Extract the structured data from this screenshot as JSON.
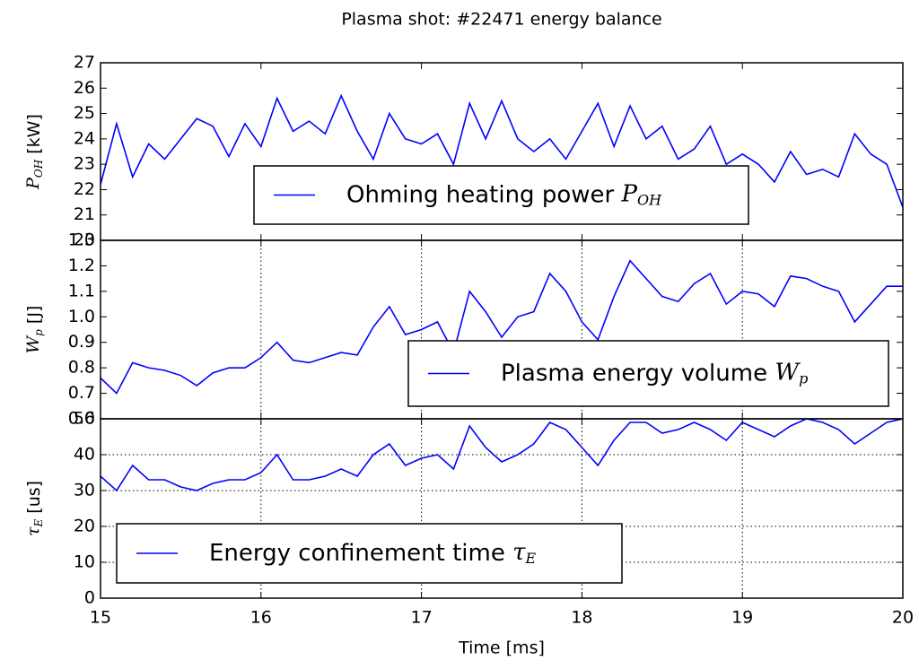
{
  "chart_data": [
    {
      "type": "line",
      "title": "Plasma shot: #22471 energy balance",
      "ylabel": {
        "symbol": "P",
        "sub": "OH",
        "unit": "[kW]"
      },
      "xlim": [
        15,
        20
      ],
      "ylim": [
        20,
        27
      ],
      "yticks": [
        20,
        21,
        22,
        23,
        24,
        25,
        26,
        27
      ],
      "grid": false,
      "legend": "lower center",
      "x": [
        15.0,
        15.1,
        15.2,
        15.3,
        15.4,
        15.5,
        15.6,
        15.7,
        15.8,
        15.9,
        16.0,
        16.1,
        16.2,
        16.3,
        16.4,
        16.5,
        16.6,
        16.7,
        16.8,
        16.9,
        17.0,
        17.1,
        17.2,
        17.3,
        17.4,
        17.5,
        17.6,
        17.7,
        17.8,
        17.9,
        18.0,
        18.1,
        18.2,
        18.3,
        18.4,
        18.5,
        18.6,
        18.7,
        18.8,
        18.9,
        19.0,
        19.1,
        19.2,
        19.3,
        19.4,
        19.5,
        19.6,
        19.7,
        19.8,
        19.9,
        20.0
      ],
      "series": [
        {
          "name": "Ohming heating power",
          "symbol": "P",
          "sub": "OH",
          "color": "#0000ff",
          "values": [
            22.2,
            24.6,
            22.5,
            23.8,
            23.2,
            24.0,
            24.8,
            24.5,
            23.3,
            24.6,
            23.7,
            25.6,
            24.3,
            24.7,
            24.2,
            25.7,
            24.3,
            23.2,
            25.0,
            24.0,
            23.8,
            24.2,
            23.0,
            25.4,
            24.0,
            25.5,
            24.0,
            23.5,
            24.0,
            23.2,
            24.3,
            25.4,
            23.7,
            25.3,
            24.0,
            24.5,
            23.2,
            23.6,
            24.5,
            23.0,
            23.4,
            23.0,
            22.3,
            23.5,
            22.6,
            22.8,
            22.5,
            24.2,
            23.4,
            23.0,
            21.3
          ]
        }
      ]
    },
    {
      "type": "line",
      "ylabel": {
        "symbol": "W",
        "sub": "p",
        "unit": "[J]"
      },
      "xlim": [
        15,
        20
      ],
      "ylim": [
        0.6,
        1.3
      ],
      "yticks": [
        0.6,
        0.7,
        0.8,
        0.9,
        {
          "value": 1,
          "label": "1.0"
        },
        1.1,
        1.2,
        1.3
      ],
      "grid": false,
      "legend": "lower right",
      "x": [
        15.0,
        15.1,
        15.2,
        15.3,
        15.4,
        15.5,
        15.6,
        15.7,
        15.8,
        15.9,
        16.0,
        16.1,
        16.2,
        16.3,
        16.4,
        16.5,
        16.6,
        16.7,
        16.8,
        16.9,
        17.0,
        17.1,
        17.2,
        17.3,
        17.4,
        17.5,
        17.6,
        17.7,
        17.8,
        17.9,
        18.0,
        18.1,
        18.2,
        18.3,
        18.4,
        18.5,
        18.6,
        18.7,
        18.8,
        18.9,
        19.0,
        19.1,
        19.2,
        19.3,
        19.4,
        19.5,
        19.6,
        19.7,
        19.8,
        19.9,
        20.0
      ],
      "series": [
        {
          "name": "Plasma energy volume",
          "symbol": "W",
          "sub": "p",
          "color": "#0000ff",
          "values": [
            0.76,
            0.7,
            0.82,
            0.8,
            0.79,
            0.77,
            0.73,
            0.78,
            0.8,
            0.8,
            0.84,
            0.9,
            0.83,
            0.82,
            0.84,
            0.86,
            0.85,
            0.96,
            1.04,
            0.93,
            0.95,
            0.98,
            0.86,
            1.1,
            1.02,
            0.92,
            1.0,
            1.02,
            1.17,
            1.1,
            0.98,
            0.91,
            1.08,
            1.22,
            1.15,
            1.08,
            1.06,
            1.13,
            1.17,
            1.05,
            1.1,
            1.09,
            1.04,
            1.16,
            1.15,
            1.12,
            1.1,
            0.98,
            1.05,
            1.12,
            1.12
          ]
        }
      ]
    },
    {
      "type": "line",
      "xlabel": "Time [ms]",
      "ylabel": {
        "symbol": "τ",
        "sub": "E",
        "unit": "[us]"
      },
      "xlim": [
        15,
        20
      ],
      "xticks": [
        15,
        16,
        17,
        18,
        19,
        20
      ],
      "ylim": [
        0,
        50
      ],
      "yticks": [
        0,
        10,
        20,
        30,
        40,
        50
      ],
      "grid": true,
      "legend": "lower left",
      "x": [
        15.0,
        15.1,
        15.2,
        15.3,
        15.4,
        15.5,
        15.6,
        15.7,
        15.8,
        15.9,
        16.0,
        16.1,
        16.2,
        16.3,
        16.4,
        16.5,
        16.6,
        16.7,
        16.8,
        16.9,
        17.0,
        17.1,
        17.2,
        17.3,
        17.4,
        17.5,
        17.6,
        17.7,
        17.8,
        17.9,
        18.0,
        18.1,
        18.2,
        18.3,
        18.4,
        18.5,
        18.6,
        18.7,
        18.8,
        18.9,
        19.0,
        19.1,
        19.2,
        19.3,
        19.4,
        19.5,
        19.6,
        19.7,
        19.8,
        19.9,
        20.0
      ],
      "series": [
        {
          "name": "Energy confinement time",
          "symbol": "τ",
          "sub": "E",
          "color": "#0000ff",
          "values": [
            34,
            30,
            37,
            33,
            33,
            31,
            30,
            32,
            33,
            33,
            35,
            40,
            33,
            33,
            34,
            36,
            34,
            40,
            43,
            37,
            39,
            40,
            36,
            48,
            42,
            38,
            40,
            43,
            49,
            47,
            42,
            37,
            44,
            49,
            49,
            46,
            47,
            49,
            47,
            44,
            49,
            47,
            45,
            48,
            50,
            49,
            47,
            43,
            46,
            49,
            50
          ]
        }
      ]
    }
  ]
}
